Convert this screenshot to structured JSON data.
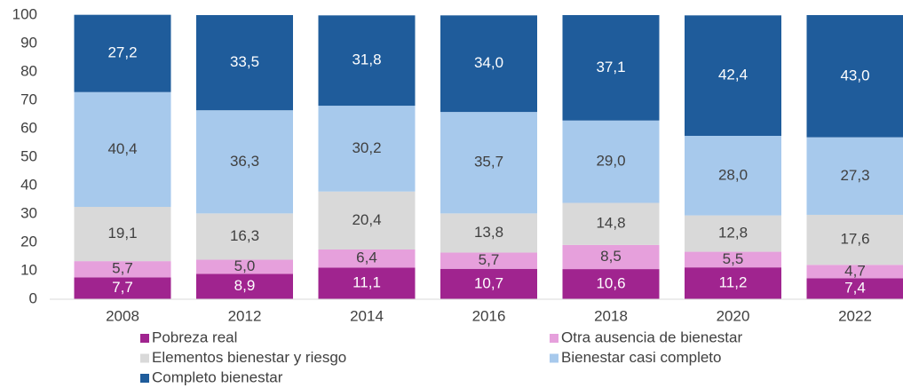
{
  "chart_data": {
    "type": "stacked_bar",
    "categories": [
      "2008",
      "2012",
      "2014",
      "2016",
      "2018",
      "2020",
      "2022"
    ],
    "series": [
      {
        "name": "Pobreza real",
        "color": "#a0248f",
        "values": [
          7.7,
          8.9,
          11.1,
          10.7,
          10.6,
          11.2,
          7.4
        ],
        "value_labels": [
          "7,7",
          "8,9",
          "11,1",
          "10,7",
          "10,6",
          "11,2",
          "7,4"
        ]
      },
      {
        "name": "Otra ausencia de bienestar",
        "color": "#e6a0dc",
        "values": [
          5.7,
          5.0,
          6.4,
          5.7,
          8.5,
          5.5,
          4.7
        ],
        "value_labels": [
          "5,7",
          "5,0",
          "6,4",
          "5,7",
          "8,5",
          "5,5",
          "4,7"
        ]
      },
      {
        "name": "Elementos bienestar y riesgo",
        "color": "#d9d9d9",
        "values": [
          19.1,
          16.3,
          20.4,
          13.8,
          14.8,
          12.8,
          17.6
        ],
        "value_labels": [
          "19,1",
          "16,3",
          "20,4",
          "13,8",
          "14,8",
          "12,8",
          "17,6"
        ]
      },
      {
        "name": "Bienestar casi completo",
        "color": "#a7c9ec",
        "values": [
          40.4,
          36.3,
          30.2,
          35.7,
          29.0,
          28.0,
          27.3
        ],
        "value_labels": [
          "40,4",
          "36,3",
          "30,2",
          "35,7",
          "29,0",
          "28,0",
          "27,3"
        ]
      },
      {
        "name": "Completo bienestar",
        "color": "#1f5c9b",
        "values": [
          27.2,
          33.5,
          31.8,
          34.0,
          37.1,
          42.4,
          43.0
        ],
        "value_labels": [
          "27,2",
          "33,5",
          "31,8",
          "34,0",
          "37,1",
          "42,4",
          "43,0"
        ]
      }
    ],
    "ylim": [
      0,
      100
    ],
    "yticks": [
      0,
      10,
      20,
      30,
      40,
      50,
      60,
      70,
      80,
      90,
      100
    ]
  }
}
